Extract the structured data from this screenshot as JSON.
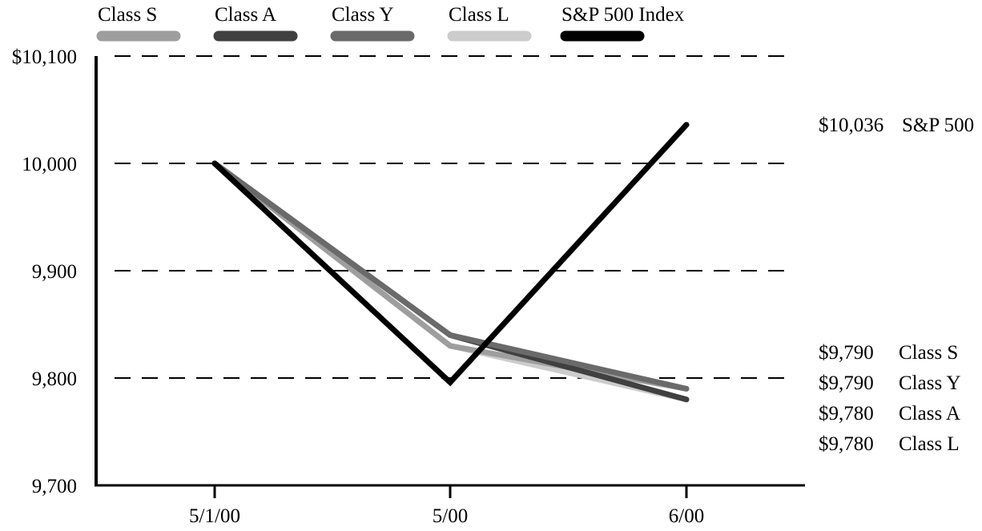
{
  "chart_data": {
    "type": "line",
    "title": "",
    "xlabel": "",
    "ylabel": "",
    "categories": [
      "5/1/00",
      "5/00",
      "6/00"
    ],
    "y_ticks": [
      "$10,100",
      "10,000",
      "9,900",
      "9,800",
      "9,700"
    ],
    "y_tick_values": [
      10100,
      10000,
      9900,
      9800,
      9700
    ],
    "ylim": [
      9700,
      10100
    ],
    "grid": "horizontal dashed",
    "legend_position": "top",
    "series": [
      {
        "name": "Class S",
        "color": "#9e9e9e",
        "values": [
          10000,
          9830,
          9790
        ]
      },
      {
        "name": "Class A",
        "color": "#404040",
        "values": [
          10000,
          9840,
          9780
        ]
      },
      {
        "name": "Class Y",
        "color": "#6a6a6a",
        "values": [
          10000,
          9840,
          9790
        ]
      },
      {
        "name": "Class L",
        "color": "#cccccc",
        "values": [
          10000,
          9830,
          9780
        ]
      },
      {
        "name": "S&P 500 Index",
        "color": "#000000",
        "values": [
          10000,
          9796,
          10036
        ]
      }
    ],
    "end_labels": [
      {
        "value": "$10,036",
        "name": "S&P 500"
      },
      {
        "value": "$9,790",
        "name": "Class S"
      },
      {
        "value": "$9,790",
        "name": "Class Y"
      },
      {
        "value": "$9,780",
        "name": "Class A"
      },
      {
        "value": "$9,780",
        "name": "Class L"
      }
    ]
  }
}
